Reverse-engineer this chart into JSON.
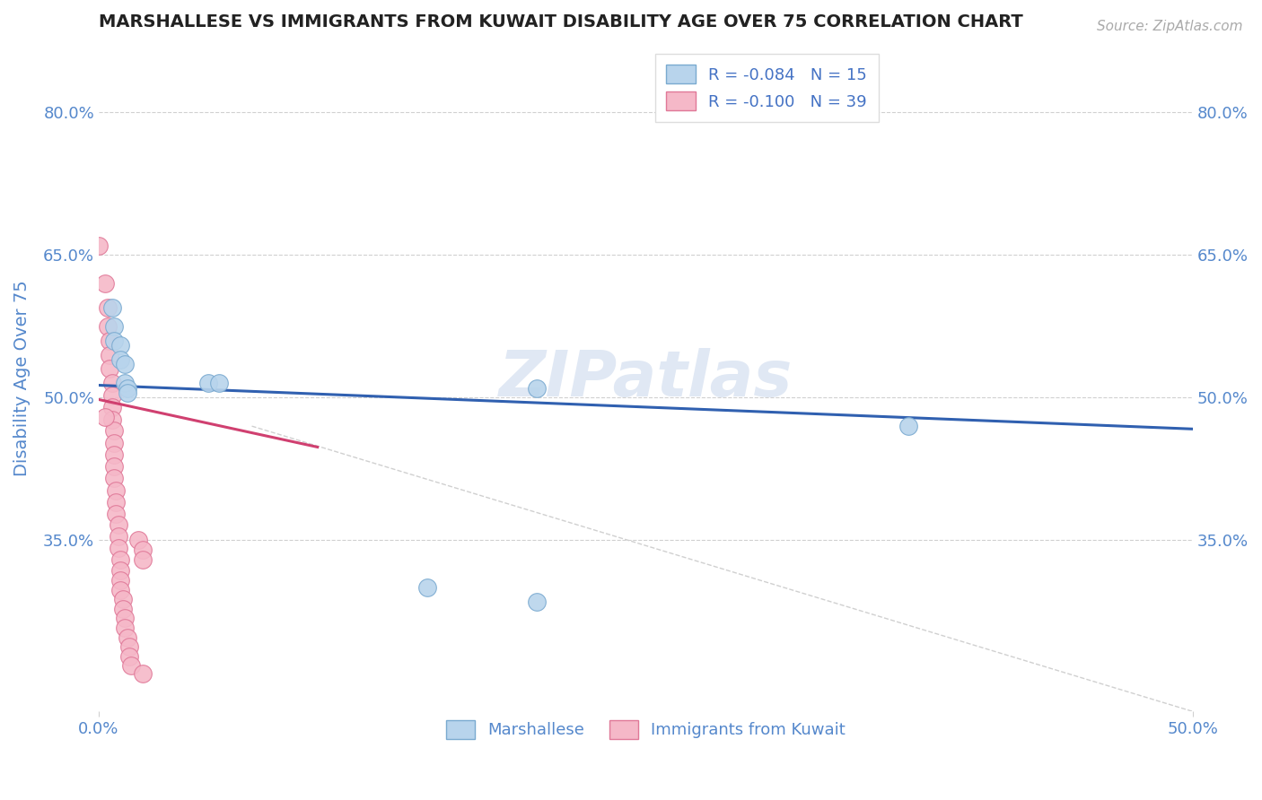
{
  "title": "MARSHALLESE VS IMMIGRANTS FROM KUWAIT DISABILITY AGE OVER 75 CORRELATION CHART",
  "source": "Source: ZipAtlas.com",
  "ylabel": "Disability Age Over 75",
  "xlim": [
    0.0,
    0.5
  ],
  "ylim": [
    0.17,
    0.87
  ],
  "yticks": [
    0.35,
    0.5,
    0.65,
    0.8
  ],
  "ytick_labels": [
    "35.0%",
    "50.0%",
    "65.0%",
    "80.0%"
  ],
  "xticks": [
    0.0,
    0.5
  ],
  "xtick_labels": [
    "0.0%",
    "50.0%"
  ],
  "legend_entries": [
    {
      "label": "R = -0.084   N = 15",
      "color": "#a8c4e0"
    },
    {
      "label": "R = -0.100   N = 39",
      "color": "#f4a0b0"
    }
  ],
  "marshallese_scatter": [
    [
      0.006,
      0.595
    ],
    [
      0.007,
      0.575
    ],
    [
      0.007,
      0.56
    ],
    [
      0.01,
      0.555
    ],
    [
      0.01,
      0.54
    ],
    [
      0.012,
      0.535
    ],
    [
      0.012,
      0.515
    ],
    [
      0.013,
      0.51
    ],
    [
      0.013,
      0.505
    ],
    [
      0.05,
      0.515
    ],
    [
      0.055,
      0.515
    ],
    [
      0.2,
      0.51
    ],
    [
      0.37,
      0.47
    ],
    [
      0.15,
      0.3
    ],
    [
      0.2,
      0.285
    ]
  ],
  "kuwait_scatter": [
    [
      0.0,
      0.66
    ],
    [
      0.003,
      0.62
    ],
    [
      0.004,
      0.595
    ],
    [
      0.004,
      0.575
    ],
    [
      0.005,
      0.56
    ],
    [
      0.005,
      0.545
    ],
    [
      0.005,
      0.53
    ],
    [
      0.006,
      0.515
    ],
    [
      0.006,
      0.502
    ],
    [
      0.006,
      0.49
    ],
    [
      0.006,
      0.477
    ],
    [
      0.007,
      0.465
    ],
    [
      0.007,
      0.452
    ],
    [
      0.007,
      0.44
    ],
    [
      0.007,
      0.428
    ],
    [
      0.007,
      0.415
    ],
    [
      0.008,
      0.402
    ],
    [
      0.008,
      0.39
    ],
    [
      0.008,
      0.378
    ],
    [
      0.009,
      0.366
    ],
    [
      0.009,
      0.354
    ],
    [
      0.009,
      0.342
    ],
    [
      0.01,
      0.33
    ],
    [
      0.01,
      0.318
    ],
    [
      0.01,
      0.308
    ],
    [
      0.01,
      0.298
    ],
    [
      0.011,
      0.288
    ],
    [
      0.011,
      0.278
    ],
    [
      0.012,
      0.268
    ],
    [
      0.012,
      0.258
    ],
    [
      0.013,
      0.248
    ],
    [
      0.014,
      0.238
    ],
    [
      0.014,
      0.228
    ],
    [
      0.015,
      0.218
    ],
    [
      0.018,
      0.35
    ],
    [
      0.02,
      0.34
    ],
    [
      0.02,
      0.33
    ],
    [
      0.02,
      0.21
    ],
    [
      0.003,
      0.48
    ]
  ],
  "blue_line": {
    "x": [
      0.0,
      0.5
    ],
    "y": [
      0.513,
      0.467
    ]
  },
  "pink_line": {
    "x": [
      0.0,
      0.1
    ],
    "y": [
      0.498,
      0.448
    ]
  },
  "dashed_line": {
    "x": [
      0.07,
      0.5
    ],
    "y": [
      0.47,
      0.17
    ]
  },
  "background_color": "#ffffff",
  "scatter_blue_color": "#b8d4ec",
  "scatter_blue_edge": "#7aaad0",
  "scatter_pink_color": "#f5b8c8",
  "scatter_pink_edge": "#e07898",
  "blue_line_color": "#3060b0",
  "pink_line_color": "#d04070",
  "dashed_line_color": "#d0d0d0",
  "grid_color": "#d0d0d0",
  "title_color": "#222222",
  "tick_label_color": "#5588cc",
  "legend_R_color": "#4472c4",
  "watermark_color": "#e0e8f4"
}
